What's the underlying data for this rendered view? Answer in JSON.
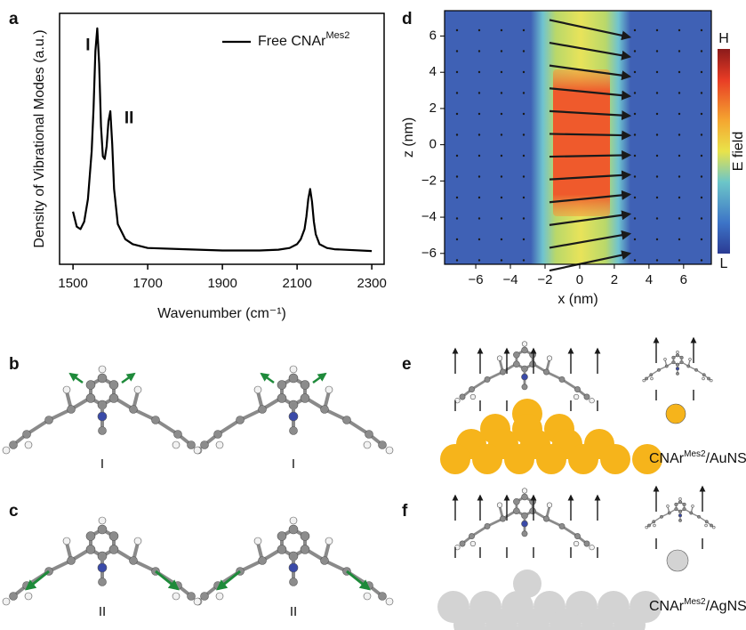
{
  "panel_labels": [
    "a",
    "b",
    "c",
    "d",
    "e",
    "f"
  ],
  "mode_labels": {
    "b": [
      "I",
      "I"
    ],
    "c": [
      "II",
      "II"
    ]
  },
  "substrate_labels": [
    {
      "molecule": "CNAr",
      "superscript": "Mes2",
      "suffix": "/AuNS"
    },
    {
      "molecule": "CNAr",
      "superscript": "Mes2",
      "suffix": "/AgNS"
    }
  ],
  "chart_data": [
    {
      "type": "line",
      "xlabel": "Wavenumber (cm⁻¹)",
      "ylabel": "Density of Vibrational Modes (a.u.)",
      "annotations": [
        {
          "text": "I",
          "x": 1540,
          "y": 0.87
        },
        {
          "text": "II",
          "x": 1650,
          "y": 0.58
        }
      ],
      "xlim": [
        1464,
        2333
      ],
      "ylim": [
        0,
        1
      ],
      "xticks": [
        1500,
        1700,
        1900,
        2100,
        2300
      ],
      "legend": "upper right",
      "x": [
        1500,
        1510,
        1520,
        1530,
        1540,
        1550,
        1555,
        1560,
        1565,
        1570,
        1575,
        1580,
        1585,
        1590,
        1595,
        1600,
        1605,
        1610,
        1620,
        1640,
        1660,
        1700,
        1800,
        1900,
        2000,
        2050,
        2080,
        2100,
        2110,
        2120,
        2125,
        2130,
        2135,
        2140,
        2145,
        2150,
        2160,
        2180,
        2200,
        2300
      ],
      "series": [
        {
          "name": "Free CNAr",
          "name_superscript": "Mes2",
          "color": "#000000",
          "values": [
            0.21,
            0.15,
            0.14,
            0.17,
            0.26,
            0.45,
            0.62,
            0.85,
            0.94,
            0.8,
            0.55,
            0.43,
            0.42,
            0.47,
            0.57,
            0.61,
            0.48,
            0.3,
            0.16,
            0.1,
            0.08,
            0.065,
            0.06,
            0.055,
            0.055,
            0.058,
            0.065,
            0.08,
            0.1,
            0.14,
            0.19,
            0.26,
            0.3,
            0.25,
            0.17,
            0.12,
            0.08,
            0.065,
            0.06,
            0.053
          ]
        }
      ]
    },
    {
      "type": "heatmap",
      "xlabel": "x (nm)",
      "ylabel": "z (nm)",
      "colorbar_label": "E field",
      "colorbar_high": "H",
      "colorbar_low": "L",
      "xlim": [
        -7.8,
        7.6
      ],
      "ylim": [
        -6.6,
        7.4
      ],
      "xticks": [
        {
          "value": -6,
          "label": "−6"
        },
        {
          "value": -4,
          "label": "−4"
        },
        {
          "value": -2,
          "label": "−2"
        },
        0,
        2,
        4,
        6
      ],
      "yticks": [
        {
          "value": -6,
          "label": "−6"
        },
        {
          "value": -4,
          "label": "−4"
        },
        {
          "value": -2,
          "label": "−2"
        },
        0,
        2,
        4,
        6
      ]
    }
  ]
}
